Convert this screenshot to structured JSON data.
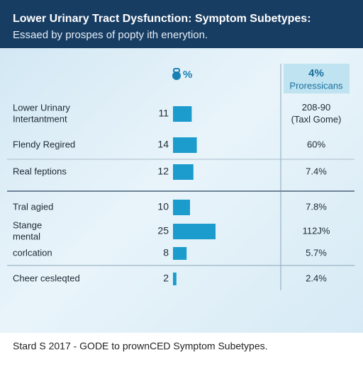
{
  "header": {
    "title": "Lower Urinary Tract Dysfunction: Symptom Subetypes:",
    "subtitle": "Essaed by prospes of popty ith enerytion."
  },
  "columns": {
    "value_header": "%",
    "right_header": [
      "4%",
      "Proressicans"
    ]
  },
  "rows": [
    {
      "label": [
        "Lower Urinary",
        "Intertantment"
      ],
      "value": 11,
      "right": [
        "208-90",
        "(Taxl Gome)"
      ]
    },
    {
      "label": [
        "Flendy Regired"
      ],
      "value": 14,
      "right": [
        "60%"
      ]
    },
    {
      "label": [
        "Real feptions"
      ],
      "value": 12,
      "right": [
        "7.4%"
      ]
    },
    {
      "label": [
        "Tral agied"
      ],
      "value": 10,
      "right": [
        "7.8%"
      ]
    },
    {
      "label": [
        "Stange",
        "mental"
      ],
      "value": 25,
      "right": [
        "112J%"
      ]
    },
    {
      "label": [
        "corlcation"
      ],
      "value": 8,
      "right": [
        "5.7%"
      ]
    },
    {
      "label": [
        "Cheer cesleqted"
      ],
      "value": 2,
      "right": [
        "2.4%"
      ]
    }
  ],
  "footer": "Stard S 2017 - GODE to prownCED Symptom Subetypes."
}
